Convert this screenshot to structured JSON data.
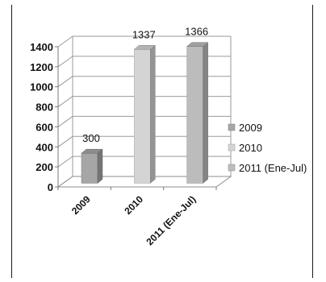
{
  "chart_data": {
    "type": "bar",
    "title": "",
    "xlabel": "",
    "ylabel": "",
    "categories": [
      "2009",
      "2010",
      "2011 (Ene-Jul)"
    ],
    "values": [
      300,
      1337,
      1366
    ],
    "value_labels": [
      "300",
      "1337",
      "1366"
    ],
    "ylim": [
      0,
      1400
    ],
    "yticks": [
      0,
      200,
      400,
      600,
      800,
      1000,
      1200,
      1400
    ],
    "grid": true,
    "three_d": true,
    "legend_position": "right",
    "legend": [
      {
        "label": "2009",
        "color": "#a6a6a6"
      },
      {
        "label": "2010",
        "color": "#d4d4d4"
      },
      {
        "label": "2011 (Ene-Jul)",
        "color": "#bcbcbc"
      }
    ],
    "colors": [
      "#a6a6a6",
      "#d4d4d4",
      "#bcbcbc"
    ]
  }
}
